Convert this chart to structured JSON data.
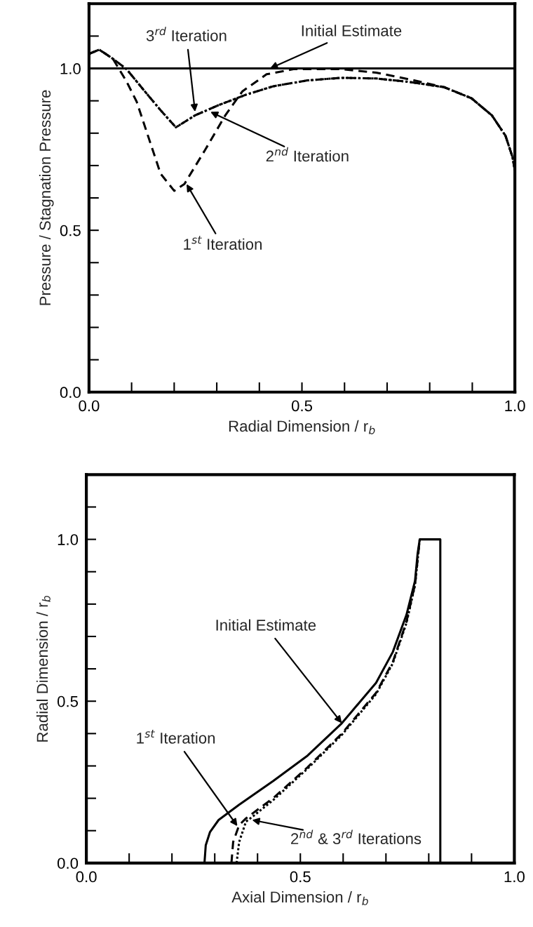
{
  "chart_data": [
    {
      "type": "line",
      "xlabel": "Radial Dimension / r$_{b}$",
      "ylabel": "Pressure / Stagnation Pressure",
      "xlim": [
        0,
        1
      ],
      "ylim": [
        0,
        1.2
      ],
      "xticks": [
        {
          "value": 0,
          "label": "0.0"
        },
        {
          "value": 0.1,
          "label": null
        },
        {
          "value": 0.2,
          "label": null
        },
        {
          "value": 0.3,
          "label": null
        },
        {
          "value": 0.4,
          "label": null
        },
        {
          "value": 0.5,
          "label": "0.5"
        },
        {
          "value": 0.6,
          "label": null
        },
        {
          "value": 0.7,
          "label": null
        },
        {
          "value": 0.8,
          "label": null
        },
        {
          "value": 0.9,
          "label": null
        },
        {
          "value": 1,
          "label": "1.0"
        }
      ],
      "yticks": [
        {
          "value": 0,
          "label": "0.0"
        },
        {
          "value": 0.1,
          "label": null
        },
        {
          "value": 0.2,
          "label": null
        },
        {
          "value": 0.3,
          "label": null
        },
        {
          "value": 0.4,
          "label": null
        },
        {
          "value": 0.5,
          "label": "0.5"
        },
        {
          "value": 0.6,
          "label": null
        },
        {
          "value": 0.7,
          "label": null
        },
        {
          "value": 0.8,
          "label": null
        },
        {
          "value": 0.9,
          "label": null
        },
        {
          "value": 1,
          "label": "1.0"
        },
        {
          "value": 1.1,
          "label": null
        }
      ],
      "grid": false,
      "legend": false,
      "series": [
        {
          "color": "#000000",
          "line_style": "solid",
          "x": [
            0,
            1
          ],
          "values": [
            1.0,
            1.0
          ]
        },
        {
          "color": "#000000",
          "line_style": "dashed",
          "x": [
            0,
            0.024,
            0.056,
            0.088,
            0.112,
            0.144,
            0.168,
            0.2,
            0.224,
            0.273,
            0.32,
            0.36,
            0.417,
            0.48,
            0.593,
            0.674,
            0.754,
            0.834,
            0.898,
            0.946,
            0.978,
            0.994,
            1.0
          ],
          "values": [
            1.045,
            1.058,
            1.03,
            0.96,
            0.897,
            0.77,
            0.675,
            0.622,
            0.643,
            0.749,
            0.855,
            0.929,
            0.982,
            0.998,
            0.998,
            0.987,
            0.966,
            0.942,
            0.908,
            0.855,
            0.792,
            0.728,
            0.686
          ]
        },
        {
          "color": "#000000",
          "line_style": "dashdot",
          "x": [
            0,
            0.024,
            0.056,
            0.088,
            0.128,
            0.168,
            0.204,
            0.249,
            0.305,
            0.369,
            0.433,
            0.513,
            0.593,
            0.674,
            0.754,
            0.834,
            0.898,
            0.946,
            0.978,
            0.994,
            1.0
          ],
          "values": [
            1.045,
            1.058,
            1.03,
            0.998,
            0.934,
            0.871,
            0.818,
            0.855,
            0.887,
            0.919,
            0.945,
            0.963,
            0.971,
            0.969,
            0.958,
            0.942,
            0.908,
            0.855,
            0.792,
            0.728,
            0.686
          ]
        },
        {
          "color": "#000000",
          "line_style": "dotted",
          "x": [
            0,
            0.024,
            0.056,
            0.088,
            0.128,
            0.168,
            0.204,
            0.249,
            0.305,
            0.369,
            0.433,
            0.513,
            0.593,
            0.674,
            0.754,
            0.834,
            0.898,
            0.946,
            0.978,
            0.994,
            1.0
          ],
          "values": [
            1.045,
            1.058,
            1.03,
            0.998,
            0.934,
            0.871,
            0.818,
            0.855,
            0.887,
            0.919,
            0.945,
            0.963,
            0.971,
            0.969,
            0.958,
            0.942,
            0.908,
            0.855,
            0.792,
            0.728,
            0.686
          ]
        }
      ],
      "annotations": [
        {
          "text": "Initial Estimate",
          "x": 0.425,
          "y": 1.0
        },
        {
          "text": "3$^{rd}$ Iteration",
          "x": 0.249,
          "y": 0.866
        },
        {
          "text": "2$^{nd}$ Iteration",
          "x": 0.285,
          "y": 0.866
        },
        {
          "text": "1$^{st}$ Iteration",
          "x": 0.229,
          "y": 0.643
        }
      ]
    },
    {
      "type": "line",
      "xlabel": "Axial Dimension / r$_{b}$",
      "ylabel": "Radial Dimension / r$_{b}$",
      "xlim": [
        0,
        1
      ],
      "ylim": [
        0,
        1.2
      ],
      "xticks": [
        {
          "value": 0,
          "label": "0.0"
        },
        {
          "value": 0.1,
          "label": null
        },
        {
          "value": 0.2,
          "label": null
        },
        {
          "value": 0.3,
          "label": null
        },
        {
          "value": 0.4,
          "label": null
        },
        {
          "value": 0.5,
          "label": "0.5"
        },
        {
          "value": 0.6,
          "label": null
        },
        {
          "value": 0.7,
          "label": null
        },
        {
          "value": 0.8,
          "label": null
        },
        {
          "value": 0.9,
          "label": null
        },
        {
          "value": 1,
          "label": "1.0"
        }
      ],
      "yticks": [
        {
          "value": 0,
          "label": "0.0"
        },
        {
          "value": 0.1,
          "label": null
        },
        {
          "value": 0.2,
          "label": null
        },
        {
          "value": 0.3,
          "label": null
        },
        {
          "value": 0.4,
          "label": null
        },
        {
          "value": 0.5,
          "label": "0.5"
        },
        {
          "value": 0.6,
          "label": null
        },
        {
          "value": 0.7,
          "label": null
        },
        {
          "value": 0.8,
          "label": null
        },
        {
          "value": 0.9,
          "label": null
        },
        {
          "value": 1,
          "label": "1.0"
        },
        {
          "value": 1.1,
          "label": null
        }
      ],
      "grid": false,
      "legend": false,
      "series": [
        {
          "color": "#000000",
          "line_style": "solid",
          "x": [
            0.276,
            0.279,
            0.289,
            0.309,
            0.357,
            0.437,
            0.517,
            0.597,
            0.677,
            0.716,
            0.748,
            0.768,
            0.774,
            0.779,
            0.827,
            0.827
          ],
          "values": [
            0,
            0.055,
            0.096,
            0.133,
            0.18,
            0.254,
            0.332,
            0.432,
            0.557,
            0.652,
            0.767,
            0.872,
            0.956,
            1.0,
            1.0,
            0
          ]
        },
        {
          "color": "#000000",
          "line_style": "dashed",
          "x": [
            0.339,
            0.343,
            0.357,
            0.373,
            0.437,
            0.517,
            0.597,
            0.677,
            0.716,
            0.748,
            0.768,
            0.779
          ],
          "values": [
            0,
            0.065,
            0.117,
            0.138,
            0.201,
            0.296,
            0.4,
            0.526,
            0.621,
            0.746,
            0.862,
            1.0
          ]
        },
        {
          "color": "#000000",
          "line_style": "dotted",
          "x": [
            0.351,
            0.357,
            0.373,
            0.389,
            0.437,
            0.517,
            0.597,
            0.677,
            0.716,
            0.748,
            0.768,
            0.779
          ],
          "values": [
            0,
            0.065,
            0.128,
            0.144,
            0.195,
            0.292,
            0.396,
            0.522,
            0.617,
            0.742,
            0.858,
            1.0
          ]
        }
      ],
      "annotations": [
        {
          "text": "Initial Estimate",
          "x": 0.597,
          "y": 0.432
        },
        {
          "text": "1$^{st}$ Iteration",
          "x": 0.353,
          "y": 0.114
        },
        {
          "text": "2$^{nd}$ & 3$^{rd}$ Iterations",
          "x": 0.387,
          "y": 0.133
        }
      ]
    }
  ]
}
